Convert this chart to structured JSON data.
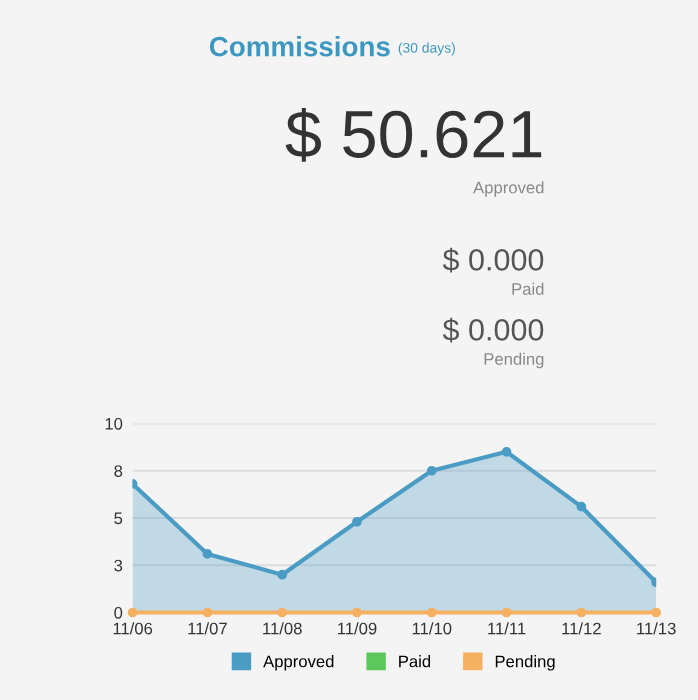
{
  "chart_data": {
    "type": "area",
    "title": "Commissions",
    "subtitle": "(30 days)",
    "annotations": [
      "$ 50.621",
      "Approved",
      "$ 0.000",
      "Paid",
      "$ 0.000",
      "Pending"
    ],
    "categories": [
      "11/06",
      "11/07",
      "11/08",
      "11/09",
      "11/10",
      "11/11",
      "11/12",
      "11/13"
    ],
    "series": [
      {
        "name": "Approved",
        "color": "#4a9cc4",
        "values": [
          6.8,
          3.1,
          2.0,
          4.8,
          7.5,
          8.5,
          5.6,
          1.6
        ]
      },
      {
        "name": "Paid",
        "type": "line",
        "color": "#5cc85c",
        "values": [
          null,
          null,
          null,
          null,
          null,
          null,
          null,
          null
        ]
      },
      {
        "name": "Pending",
        "type": "line",
        "color": "#f5b062",
        "values": [
          0,
          0,
          0,
          0,
          0,
          0,
          0,
          0
        ]
      }
    ],
    "ylim": [
      0,
      10
    ],
    "yticks": [
      0,
      {
        "value": 2.5,
        "label": "3"
      },
      5,
      {
        "value": 7.5,
        "label": "8"
      },
      10
    ],
    "grid": "y",
    "legend": "bottom",
    "marker": "circle"
  }
}
